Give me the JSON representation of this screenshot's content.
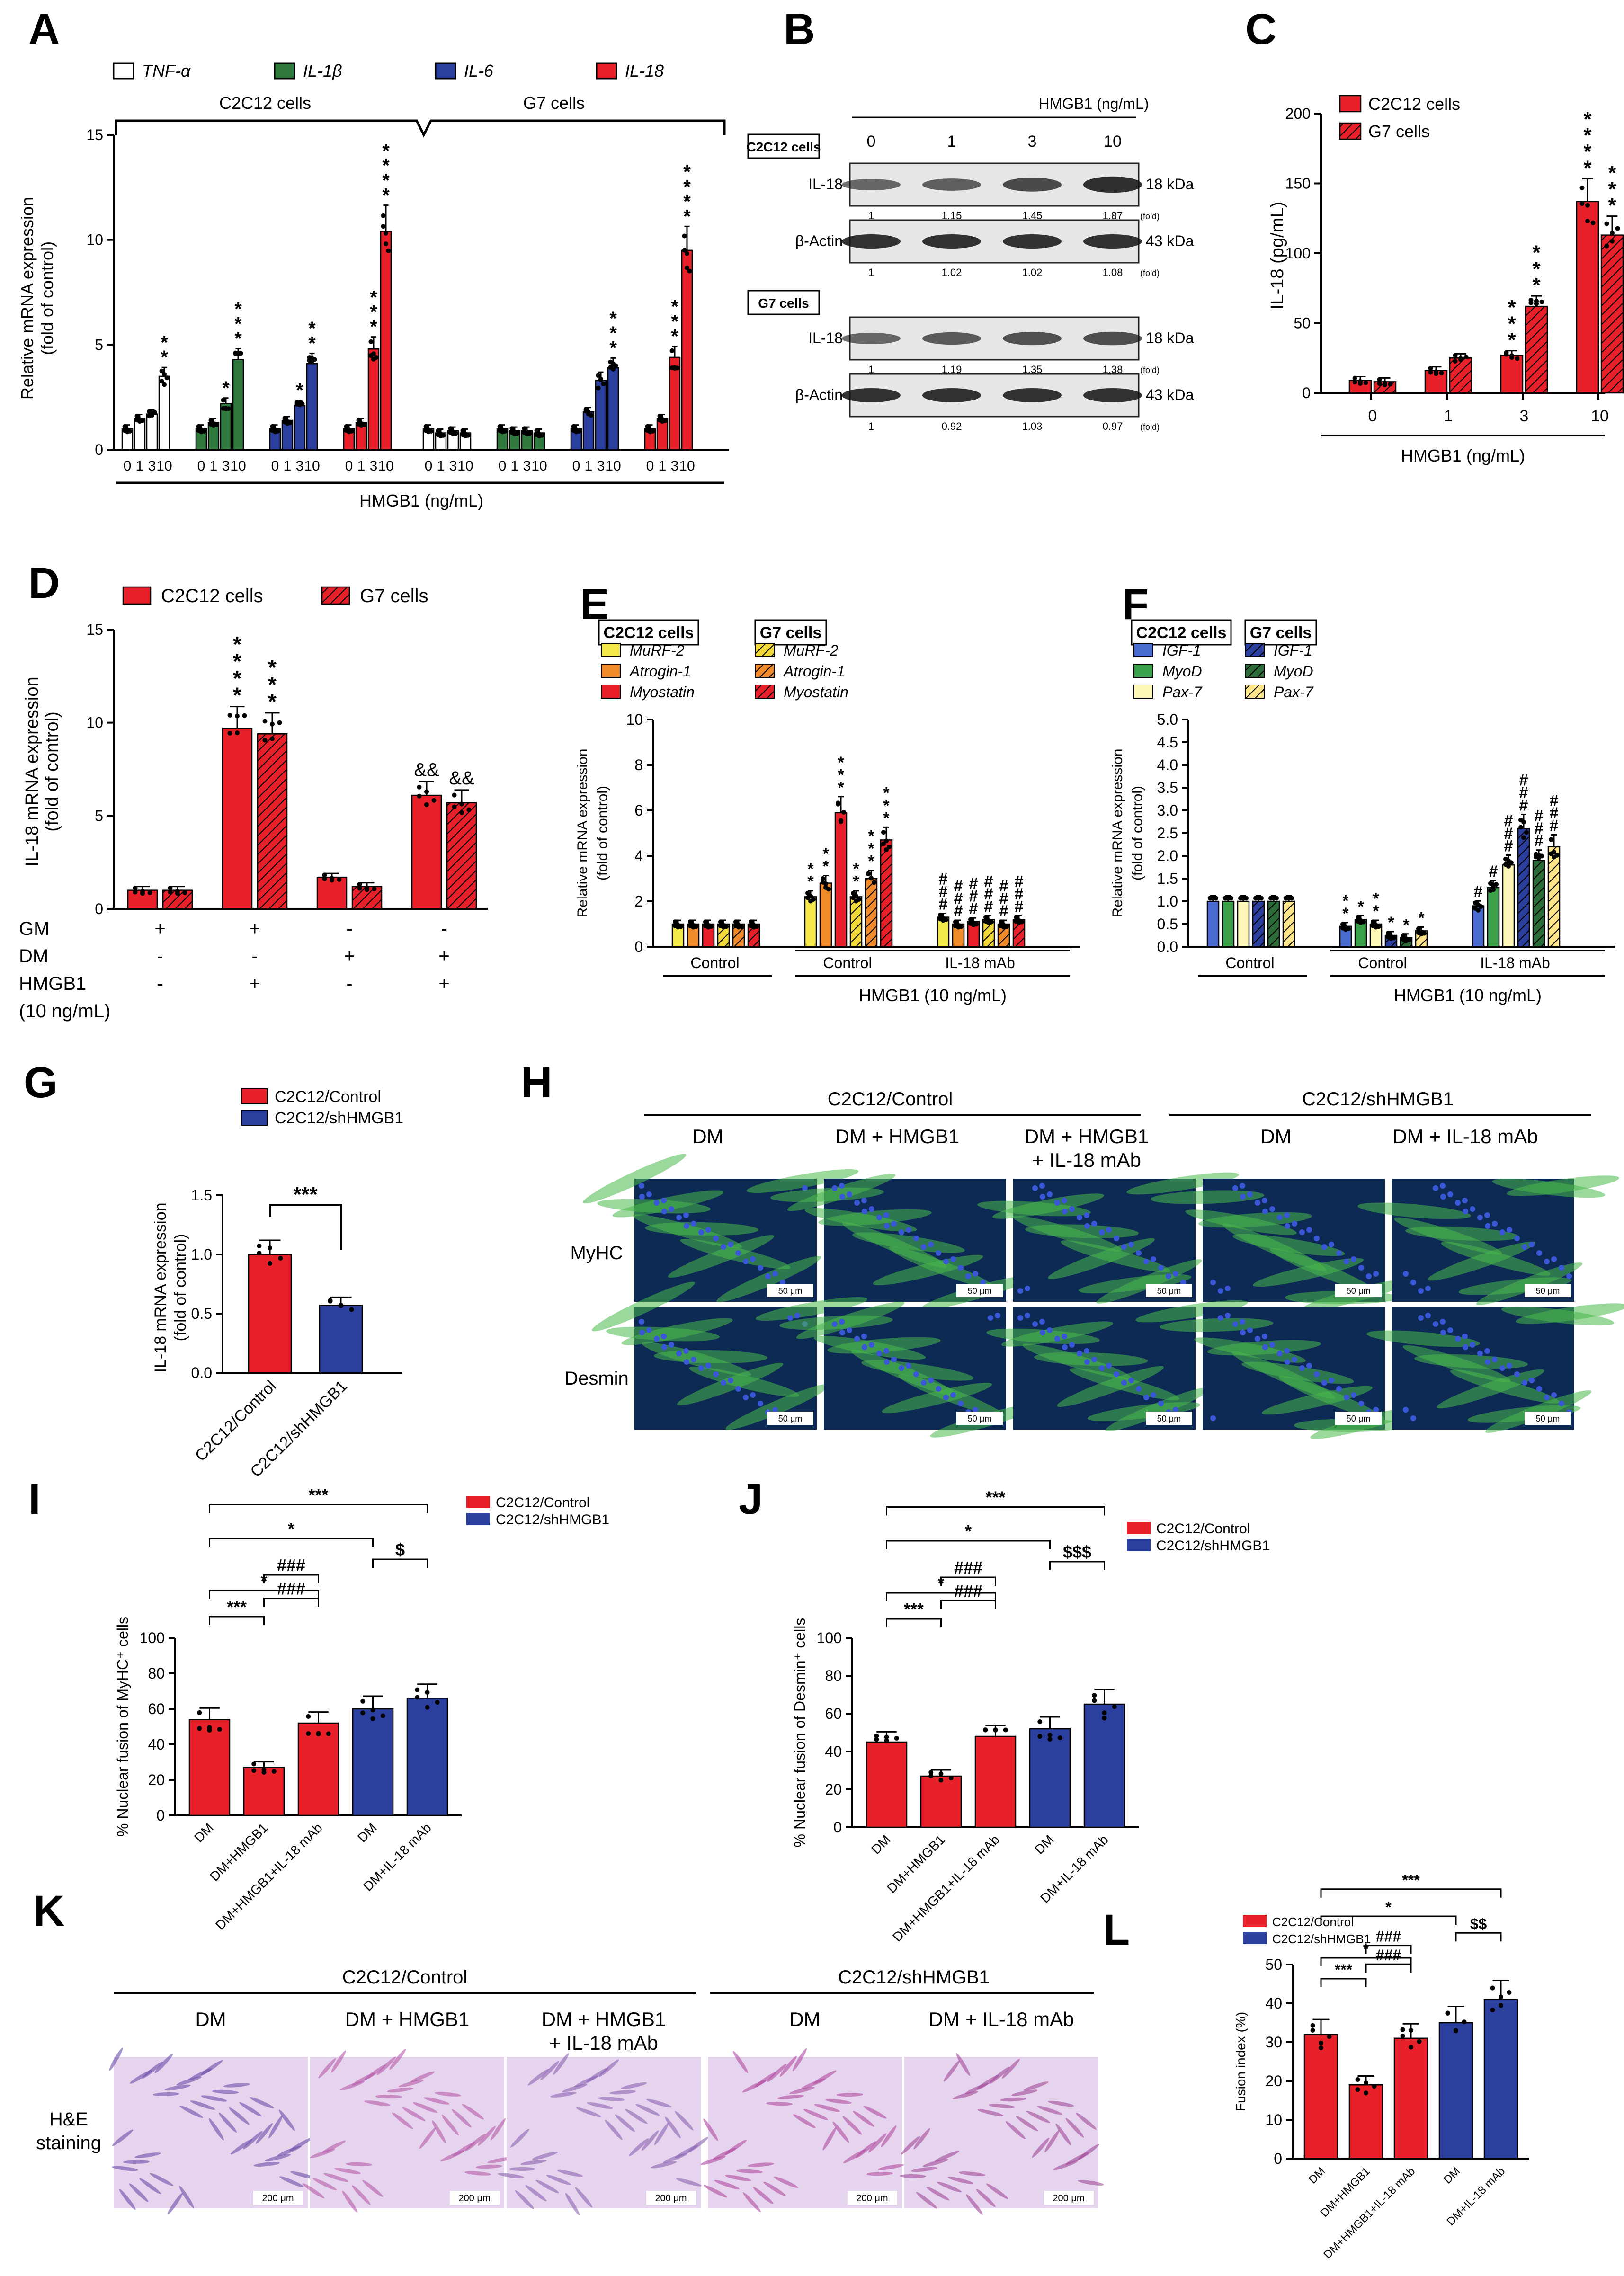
{
  "colors": {
    "red": "#e8202a",
    "blue": "#2b3f9e",
    "green": "#2f7a3c",
    "yellow": "#f5e84a",
    "orange": "#f08a2b",
    "lightyellow": "#fff7b8",
    "lightblue": "#4a6bd0",
    "darkgreen": "#2a6b38",
    "fluor_bg": "#0d2a55",
    "he_bg": "#e6d4ee"
  },
  "labels": {
    "A": "A",
    "B": "B",
    "C": "C",
    "D": "D",
    "E": "E",
    "F": "F",
    "G": "G",
    "H": "H",
    "I": "I",
    "J": "J",
    "K": "K",
    "L": "L"
  },
  "sig": {
    "s1": "*",
    "s2": "**",
    "s3": "***",
    "h3": "###",
    "d1": "$",
    "d2": "$$",
    "d3": "$$$",
    "a2": "&&"
  },
  "groups": {
    "c2c12": "C2C12 cells",
    "g7": "G7 cells",
    "ctrl": "C2C12/Control",
    "sh": "C2C12/shHMGB1"
  },
  "text": {
    "hmgb1_ngml": "HMGB1 (ng/mL)",
    "hmgb1_10": "HMGB1 (10 ng/mL)",
    "dm": "DM",
    "dm_hmgb1": "DM + HMGB1",
    "dm_hmgb1_mab_1": "DM + HMGB1",
    "dm_hmgb1_mab_2": "+ IL-18 mAb",
    "dm_mab": "DM + IL-18 mAb",
    "control": "Control",
    "il18mab": "IL-18 mAb",
    "fold": "(fold)",
    "myhc": "MyHC",
    "desmin": "Desmin",
    "scale50": "50 μm",
    "scale200": "200 μm",
    "he1": "H&E",
    "he2": "staining"
  },
  "chart_data": [
    {
      "panel": "A",
      "type": "bar",
      "ylabel": "Relative mRNA expression\n(fold of control)",
      "ylim": [
        0,
        15
      ],
      "yticks": [
        "0",
        "5",
        "10",
        "15"
      ],
      "xlabel": "HMGB1 (ng/mL)",
      "group_labels": [
        "C2C12 cells",
        "G7 cells"
      ],
      "legend": [
        "TNF-α",
        "IL-1β",
        "IL-6",
        "IL-18"
      ],
      "doses": [
        "0",
        "1",
        "3",
        "10"
      ],
      "series": [
        {
          "cell": "C2C12 cells",
          "gene": "TNF-α",
          "values": [
            1,
            1.5,
            1.7,
            3.5
          ],
          "sig": [
            "",
            "",
            "",
            "**"
          ]
        },
        {
          "cell": "C2C12 cells",
          "gene": "IL-1β",
          "values": [
            1,
            1.3,
            2.2,
            4.3
          ],
          "sig": [
            "",
            "",
            "*",
            "***"
          ]
        },
        {
          "cell": "C2C12 cells",
          "gene": "IL-6",
          "values": [
            1,
            1.4,
            2.1,
            4.1
          ],
          "sig": [
            "",
            "",
            "*",
            "**"
          ]
        },
        {
          "cell": "C2C12 cells",
          "gene": "IL-18",
          "values": [
            1,
            1.3,
            4.8,
            10.4
          ],
          "sig": [
            "",
            "",
            "***",
            "****"
          ]
        },
        {
          "cell": "G7 cells",
          "gene": "TNF-α",
          "values": [
            1,
            0.8,
            0.9,
            0.8
          ],
          "sig": [
            "",
            "",
            "",
            ""
          ]
        },
        {
          "cell": "G7 cells",
          "gene": "IL-1β",
          "values": [
            1,
            0.9,
            0.9,
            0.8
          ],
          "sig": [
            "",
            "",
            "",
            ""
          ]
        },
        {
          "cell": "G7 cells",
          "gene": "IL-6",
          "values": [
            1,
            1.8,
            3.3,
            3.9
          ],
          "sig": [
            "",
            "",
            "",
            "***"
          ]
        },
        {
          "cell": "G7 cells",
          "gene": "IL-18",
          "values": [
            1,
            1.5,
            4.4,
            9.5
          ],
          "sig": [
            "",
            "",
            "***",
            "****"
          ]
        }
      ]
    },
    {
      "panel": "B",
      "type": "table",
      "title": "HMGB1 (ng/mL)",
      "doses": [
        "0",
        "1",
        "3",
        "10"
      ],
      "blots": [
        {
          "cell": "C2C12 cells",
          "protein": "IL-18",
          "kda": "18 kDa",
          "fold": [
            "1",
            "1.15",
            "1.45",
            "1.87"
          ]
        },
        {
          "cell": "C2C12 cells",
          "protein": "β-Actin",
          "kda": "43 kDa",
          "fold": [
            "1",
            "1.02",
            "1.02",
            "1.08"
          ]
        },
        {
          "cell": "G7 cells",
          "protein": "IL-18",
          "kda": "18 kDa",
          "fold": [
            "1",
            "1.19",
            "1.35",
            "1.38"
          ]
        },
        {
          "cell": "G7 cells",
          "protein": "β-Actin",
          "kda": "43 kDa",
          "fold": [
            "1",
            "0.92",
            "1.03",
            "0.97"
          ]
        }
      ]
    },
    {
      "panel": "C",
      "type": "bar",
      "ylabel": "IL-18 (pg/mL)",
      "xlabel": "HMGB1 (ng/mL)",
      "ylim": [
        0,
        200
      ],
      "yticks": [
        "0",
        "50",
        "100",
        "150",
        "200"
      ],
      "categories": [
        "0",
        "1",
        "3",
        "10"
      ],
      "series": [
        {
          "name": "C2C12 cells",
          "values": [
            9,
            16,
            27,
            137
          ],
          "sig": [
            "",
            "",
            "***",
            "****"
          ]
        },
        {
          "name": "G7 cells",
          "values": [
            8,
            25,
            62,
            113
          ],
          "sig": [
            "",
            "",
            "***",
            "***"
          ]
        }
      ]
    },
    {
      "panel": "D",
      "type": "bar",
      "ylabel": "IL-18 mRNA expression\n(fold of control)",
      "ylim": [
        0,
        15
      ],
      "yticks": [
        "0",
        "5",
        "10",
        "15"
      ],
      "row_labels": [
        "GM",
        "DM",
        "HMGB1",
        "(10 ng/mL)"
      ],
      "conditions": [
        [
          "+",
          "-",
          "-"
        ],
        [
          "+",
          "-",
          "+"
        ],
        [
          "-",
          "+",
          "-"
        ],
        [
          "-",
          "+",
          "+"
        ]
      ],
      "series": [
        {
          "name": "C2C12 cells",
          "values": [
            1,
            9.7,
            1.7,
            6.1
          ],
          "sig": [
            "",
            "****",
            "",
            "&&"
          ]
        },
        {
          "name": "G7 cells",
          "values": [
            1,
            9.4,
            1.2,
            5.7
          ],
          "sig": [
            "",
            "***",
            "",
            "&&"
          ]
        }
      ]
    },
    {
      "panel": "E",
      "type": "bar",
      "ylabel": "Relative mRNA expression\n(fold of control)",
      "ylim": [
        0,
        10
      ],
      "yticks": [
        "0",
        "2",
        "4",
        "6",
        "8",
        "10"
      ],
      "xlabel": "HMGB1 (10 ng/mL)",
      "groups": [
        "Control",
        "Control",
        "IL-18 mAb"
      ],
      "legend_headers": [
        "C2C12 cells",
        "G7 cells"
      ],
      "legend": [
        "MuRF-2",
        "Atrogin-1",
        "Myostatin"
      ],
      "series": [
        {
          "name": "MuRF-2 C2C12",
          "values": [
            1,
            2.2,
            1.3
          ]
        },
        {
          "name": "Atrogin-1 C2C12",
          "values": [
            1,
            2.8,
            1.0
          ]
        },
        {
          "name": "Myostatin C2C12",
          "values": [
            1,
            5.9,
            1.1
          ]
        },
        {
          "name": "MuRF-2 G7",
          "values": [
            1,
            2.2,
            1.2
          ]
        },
        {
          "name": "Atrogin-1 G7",
          "values": [
            1,
            3.0,
            1.0
          ]
        },
        {
          "name": "Myostatin G7",
          "values": [
            1,
            4.7,
            1.2
          ]
        }
      ],
      "sig": [
        [
          "",
          "",
          ""
        ],
        [
          "**",
          "***",
          "###"
        ],
        [
          "**",
          "***",
          "###"
        ],
        [
          "***",
          "****",
          "###"
        ],
        [
          "**",
          "**",
          "###"
        ],
        [
          "***",
          "****",
          "###"
        ],
        [
          "***",
          "****",
          "###"
        ]
      ]
    },
    {
      "panel": "F",
      "type": "bar",
      "ylabel": "Relative mRNA expression\n(fold of control)",
      "ylim": [
        0,
        5
      ],
      "yticks": [
        "0.0",
        "0.5",
        "1.0",
        "1.5",
        "2.0",
        "2.5",
        "3.0",
        "3.5",
        "4.0",
        "4.5",
        "5.0"
      ],
      "xlabel": "HMGB1 (10 ng/mL)",
      "groups": [
        "Control",
        "Control",
        "IL-18 mAb"
      ],
      "legend_headers": [
        "C2C12 cells",
        "G7 cells"
      ],
      "legend": [
        "IGF-1",
        "MyoD",
        "Pax-7"
      ],
      "series": [
        {
          "name": "IGF-1 C2C12",
          "values": [
            1,
            0.45,
            0.9
          ]
        },
        {
          "name": "MyoD C2C12",
          "values": [
            1,
            0.6,
            1.3
          ]
        },
        {
          "name": "Pax-7 C2C12",
          "values": [
            1,
            0.5,
            1.8
          ]
        },
        {
          "name": "IGF-1 G7",
          "values": [
            1,
            0.25,
            2.6
          ]
        },
        {
          "name": "MyoD G7",
          "values": [
            1,
            0.2,
            1.9
          ]
        },
        {
          "name": "Pax-7 G7",
          "values": [
            1,
            0.35,
            2.2
          ]
        }
      ]
    },
    {
      "panel": "G",
      "type": "bar",
      "ylabel": "IL-18 mRNA expression\n(fold of control)",
      "ylim": [
        0,
        1.5
      ],
      "yticks": [
        "0.0",
        "0.5",
        "1.0",
        "1.5"
      ],
      "categories": [
        "C2C12/Control",
        "C2C12/shHMGB1"
      ],
      "values": [
        1.0,
        0.57
      ],
      "sig": "***"
    },
    {
      "panel": "I",
      "type": "bar",
      "ylabel": "% Nuclear fusion of MyHC⁺ cells",
      "ylim": [
        0,
        100
      ],
      "yticks": [
        "0",
        "20",
        "40",
        "60",
        "80",
        "100"
      ],
      "categories": [
        "DM",
        "DM+HMGB1",
        "DM+HMGB1+IL-18 mAb",
        "DM",
        "DM+IL-18 mAb"
      ],
      "values": [
        54,
        27,
        52,
        60,
        66
      ],
      "legend": [
        "C2C12/Control",
        "C2C12/shHMGB1"
      ],
      "brackets": [
        "***",
        "*",
        "*",
        "###",
        "***",
        "###",
        "$"
      ]
    },
    {
      "panel": "J",
      "type": "bar",
      "ylabel": "% Nuclear fusion of Desmin⁺ cells",
      "ylim": [
        0,
        100
      ],
      "yticks": [
        "0",
        "20",
        "40",
        "60",
        "80",
        "100"
      ],
      "categories": [
        "DM",
        "DM+HMGB1",
        "DM+HMGB1+IL-18 mAb",
        "DM",
        "DM+IL-18 mAb"
      ],
      "values": [
        45,
        27,
        48,
        52,
        65
      ],
      "legend": [
        "C2C12/Control",
        "C2C12/shHMGB1"
      ],
      "brackets": [
        "***",
        "*",
        "*",
        "###",
        "***",
        "###",
        "$$$"
      ]
    },
    {
      "panel": "L",
      "type": "bar",
      "ylabel": "Fusion index (%)",
      "ylim": [
        0,
        50
      ],
      "yticks": [
        "0",
        "10",
        "20",
        "30",
        "40",
        "50"
      ],
      "categories": [
        "DM",
        "DM+HMGB1",
        "DM+HMGB1+IL-18 mAb",
        "DM",
        "DM+IL-18 mAb"
      ],
      "values": [
        32,
        19,
        31,
        35,
        41
      ],
      "legend": [
        "C2C12/Control",
        "C2C12/shHMGB1"
      ],
      "brackets": [
        "***",
        "*",
        "*",
        "###",
        "***",
        "###",
        "$$"
      ]
    }
  ]
}
